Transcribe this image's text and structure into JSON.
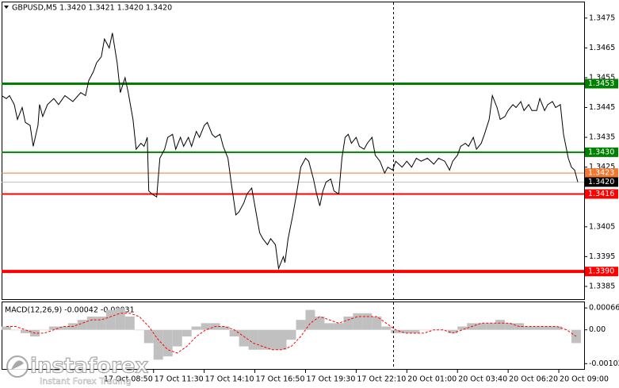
{
  "chart_data": [
    {
      "type": "line",
      "title": "GBPUSD,M5  1.3420 1.3421 1.3420 1.3420",
      "color": "#000000",
      "x": [
        0,
        3,
        5,
        8,
        10,
        13,
        15,
        18,
        20,
        23,
        24,
        26,
        29,
        33,
        36,
        40,
        45,
        50,
        53,
        55,
        58,
        60,
        63,
        65,
        68,
        70,
        73,
        75,
        78,
        80,
        83,
        85,
        88,
        90,
        92,
        93,
        95,
        98,
        100,
        103,
        105,
        108,
        110,
        113,
        115,
        118,
        120,
        123,
        125,
        128,
        130,
        133,
        135,
        138,
        140,
        143,
        145,
        148,
        150,
        153,
        155,
        158,
        160,
        163,
        165,
        168,
        170,
        173,
        175,
        178,
        179,
        181,
        184,
        186,
        189,
        192,
        194,
        197,
        199,
        201,
        203,
        205,
        208,
        210,
        213,
        215,
        217,
        219,
        221,
        224,
        226,
        229,
        231,
        234,
        236,
        239,
        242,
        244,
        247,
        249,
        253,
        256,
        259,
        262,
        265,
        269,
        273,
        276,
        280,
        283,
        285,
        288,
        290,
        293,
        295,
        298,
        300,
        303,
        305,
        308,
        310,
        313,
        315,
        318,
        320,
        323,
        325,
        328,
        330,
        333,
        335,
        338,
        340,
        343,
        345,
        348,
        350,
        353,
        355,
        358,
        360,
        362,
        364
      ],
      "values": [
        1.3449,
        1.3448,
        1.3449,
        1.3446,
        1.3441,
        1.3445,
        1.344,
        1.3439,
        1.3432,
        1.3439,
        1.3446,
        1.3442,
        1.3446,
        1.3448,
        1.3446,
        1.3449,
        1.3447,
        1.345,
        1.3449,
        1.3454,
        1.3457,
        1.346,
        1.3462,
        1.3468,
        1.3465,
        1.347,
        1.346,
        1.345,
        1.3455,
        1.345,
        1.3441,
        1.3431,
        1.3433,
        1.3432,
        1.3435,
        1.3417,
        1.3416,
        1.3415,
        1.3428,
        1.3431,
        1.3435,
        1.3436,
        1.3431,
        1.3435,
        1.3432,
        1.3435,
        1.3432,
        1.3437,
        1.3435,
        1.3439,
        1.344,
        1.3436,
        1.3435,
        1.3436,
        1.3432,
        1.3428,
        1.342,
        1.3409,
        1.341,
        1.3413,
        1.3416,
        1.3418,
        1.3412,
        1.3403,
        1.3401,
        1.3399,
        1.3401,
        1.3399,
        1.3391,
        1.3395,
        1.3393,
        1.3401,
        1.3409,
        1.3415,
        1.3425,
        1.3428,
        1.3427,
        1.3421,
        1.3416,
        1.3412,
        1.3417,
        1.342,
        1.3421,
        1.3417,
        1.3416,
        1.3428,
        1.3435,
        1.3436,
        1.3433,
        1.3435,
        1.3432,
        1.3431,
        1.3433,
        1.3435,
        1.3429,
        1.3427,
        1.3423,
        1.3425,
        1.3424,
        1.3427,
        1.3425,
        1.3427,
        1.3425,
        1.3428,
        1.3427,
        1.3428,
        1.3426,
        1.3428,
        1.3427,
        1.3424,
        1.3427,
        1.3429,
        1.3432,
        1.3433,
        1.3432,
        1.3435,
        1.3431,
        1.3433,
        1.3436,
        1.3441,
        1.3449,
        1.3445,
        1.3441,
        1.3442,
        1.3444,
        1.3446,
        1.3445,
        1.3447,
        1.3444,
        1.3446,
        1.3444,
        1.3444,
        1.3448,
        1.3444,
        1.3446,
        1.3447,
        1.3445,
        1.3446,
        1.3436,
        1.3428,
        1.3425,
        1.3424,
        1.342
      ],
      "xlim": [
        0,
        368
      ],
      "ylim": [
        1.3381,
        1.348
      ],
      "yticks": [
        1.3475,
        1.3465,
        1.3455,
        1.3445,
        1.3435,
        1.3425,
        1.3415,
        1.3405,
        1.3395,
        1.3385
      ],
      "levels": [
        {
          "value": 1.3453,
          "color": "#008000",
          "line_width": 3
        },
        {
          "value": 1.343,
          "label": "1.3430",
          "color": "#008000",
          "line_width": 2
        },
        {
          "value": 1.3423,
          "color": "#f07830",
          "line_width": 1
        },
        {
          "value": 1.342,
          "label": "1.3420",
          "color": "#000000",
          "line_width": 0
        },
        {
          "value": 1.3416,
          "color": "#ff0000",
          "line_width": 2
        },
        {
          "value": 1.339,
          "label": "1.3390",
          "color": "#ff0000",
          "line_width": 4
        }
      ]
    },
    {
      "type": "macd",
      "title": "MACD(12,26,9) -0.00042 -0.00031",
      "x": [
        0,
        6,
        12,
        18,
        24,
        30,
        36,
        42,
        48,
        54,
        60,
        66,
        72,
        78,
        84,
        90,
        96,
        102,
        108,
        114,
        120,
        126,
        132,
        138,
        144,
        150,
        156,
        162,
        168,
        174,
        180,
        186,
        192,
        198,
        204,
        210,
        216,
        222,
        228,
        234,
        240,
        246,
        252,
        258,
        264,
        270,
        276,
        282,
        288,
        294,
        300,
        306,
        312,
        318,
        324,
        330,
        336,
        342,
        348,
        354,
        360
      ],
      "series": [
        {
          "color": "#c0c0c0",
          "values": [
            0.0001,
            0.0,
            -0.0001,
            -0.0002,
            0.0,
            0.0001,
            0.0001,
            0.0002,
            0.0003,
            0.0004,
            0.0004,
            0.0006,
            0.00065,
            0.0004,
            0.0,
            -0.0004,
            -0.0009,
            -0.0008,
            -0.0005,
            -0.0002,
            0.0001,
            0.0002,
            0.0002,
            0.0001,
            -0.0002,
            -0.0005,
            -0.0006,
            -0.0006,
            -0.0006,
            -0.0006,
            -0.0003,
            0.0003,
            0.0006,
            0.0004,
            0.0002,
            0.0002,
            0.0004,
            0.0005,
            0.0005,
            0.0004,
            0.0001,
            -0.0001,
            -0.0001,
            -0.0001,
            0.0,
            0.0,
            0.0,
            -0.0001,
            0.0001,
            0.0002,
            0.0002,
            0.0002,
            0.0003,
            0.0002,
            0.0002,
            0.0001,
            0.0001,
            0.0001,
            0.0001,
            0.0,
            -0.0004
          ]
        },
        {
          "color": "#ff0000",
          "values": [
            0.0001,
            0.0001,
            0.0,
            -0.0001,
            -0.0001,
            0.0,
            0.0001,
            0.0001,
            0.0002,
            0.0003,
            0.0003,
            0.0004,
            0.0005,
            0.0005,
            0.0004,
            0.0001,
            -0.0003,
            -0.0006,
            -0.0007,
            -0.0005,
            -0.0002,
            0.0,
            0.0001,
            0.0001,
            0.0,
            -0.0002,
            -0.0004,
            -0.0005,
            -0.0006,
            -0.0006,
            -0.0005,
            -0.0002,
            0.0002,
            0.0004,
            0.0003,
            0.0002,
            0.0003,
            0.0004,
            0.0004,
            0.0004,
            0.0002,
            0.0,
            -0.0001,
            -0.0001,
            -0.0001,
            0.0,
            0.0,
            -0.0001,
            0.0,
            0.0001,
            0.0002,
            0.0002,
            0.0002,
            0.0002,
            0.0001,
            0.0001,
            0.0001,
            0.0001,
            0.0001,
            0.0,
            -0.0002
          ]
        }
      ],
      "xlim": [
        0,
        368
      ],
      "ylim": [
        -0.00118,
        0.00083
      ],
      "yticks": [
        0.00066,
        {
          "value": 0,
          "label": "0.00"
        },
        -0.00102
      ],
      "xticks": [
        {
          "value": 64,
          "label": "17 Oct 08:50"
        },
        {
          "value": 96,
          "label": "17 Oct 11:30"
        },
        {
          "value": 128,
          "label": "17 Oct 14:10"
        },
        {
          "value": 160,
          "label": "17 Oct 16:50"
        },
        {
          "value": 192,
          "label": "17 Oct 19:30"
        },
        {
          "value": 224,
          "label": "17 Oct 22:10"
        },
        {
          "value": 256,
          "label": "20 Oct 01:00"
        },
        {
          "value": 288,
          "label": "20 Oct 03:40"
        },
        {
          "value": 320,
          "label": "20 Oct 06:20"
        },
        {
          "value": 352,
          "label": "20 Oct 09:00"
        }
      ]
    }
  ],
  "watermark": {
    "brand": "instaforex",
    "tagline": "Instant Forex Trading"
  }
}
